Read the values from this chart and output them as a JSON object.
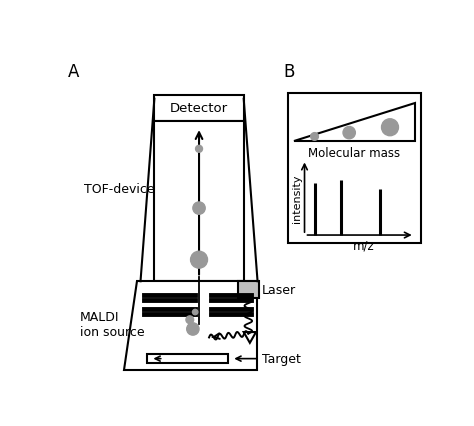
{
  "bg_color": "#ffffff",
  "line_color": "#000000",
  "gray_color": "#999999",
  "light_gray": "#bebebe",
  "label_A": "A",
  "label_B": "B",
  "tof_label": "TOF-device",
  "maldi_label": "MALDI\nion source",
  "detector_label": "Detector",
  "laser_label": "Laser",
  "target_label": "Target",
  "mol_mass_label": "Molecular mass",
  "intensity_label": "intensity",
  "mz_label": "m/z",
  "figsize": [
    4.74,
    4.27
  ],
  "dpi": 100
}
